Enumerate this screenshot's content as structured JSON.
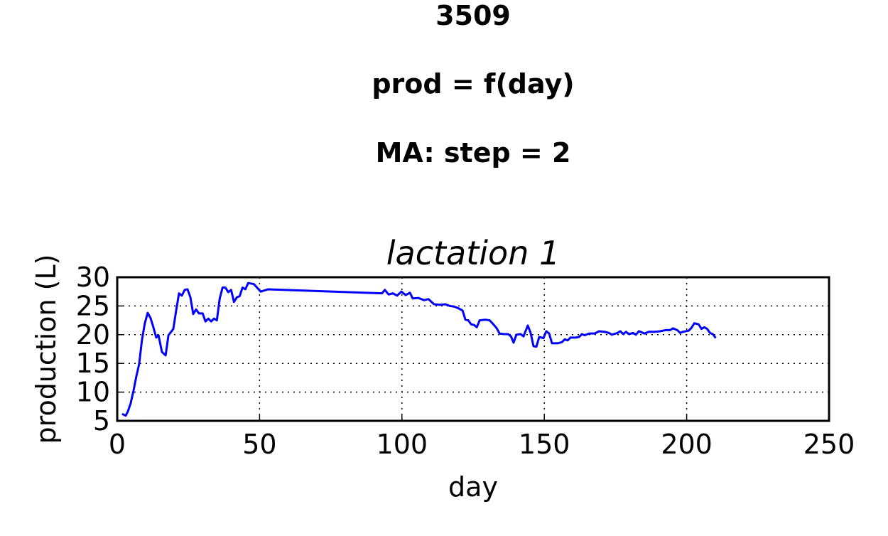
{
  "chart_data": {
    "type": "line",
    "suptitle": [
      "3509",
      "prod = f(day)",
      "MA: step = 2"
    ],
    "title": "lactation 1",
    "x_label": "day",
    "y_label": "production (L)",
    "xlim": [
      0,
      250
    ],
    "xticks": [
      0,
      50,
      100,
      150,
      200,
      250
    ],
    "ylim": [
      5,
      30
    ],
    "yticks": [
      5,
      10,
      15,
      20,
      25,
      30
    ],
    "grid": true,
    "series": [
      {
        "color": "#0000ff",
        "x": [
          1.7,
          3,
          3.7,
          4.7,
          5.7,
          6.7,
          7.7,
          8.7,
          9.7,
          10.7,
          11.7,
          12.7,
          13.7,
          14.5,
          15.7,
          17,
          18,
          19.7,
          20.7,
          21.7,
          22.7,
          23.7,
          24.7,
          25.7,
          26.7,
          27.7,
          28.7,
          30,
          31,
          32,
          33,
          34,
          35,
          36,
          37,
          38,
          39,
          40,
          41,
          42,
          43,
          44,
          45,
          46,
          48,
          50.4,
          53,
          93,
          94,
          95.3,
          96.8,
          98.3,
          99.8,
          101.3,
          102.8,
          103.8,
          105.8,
          107.8,
          109.3,
          111.3,
          113.3,
          115.3,
          116.8,
          118.3,
          119.8,
          121.3,
          122.3,
          123.3,
          124.3,
          125.3,
          126.3,
          127.3,
          129.3,
          130.8,
          132.3,
          133.3,
          134.3,
          135.8,
          137.3,
          138.3,
          139.2,
          140.2,
          141.7,
          142.7,
          144.2,
          145.2,
          146.2,
          147.2,
          148.2,
          149.7,
          150.7,
          151.7,
          152.7,
          154.7,
          156.2,
          157.2,
          158.2,
          159.2,
          161.2,
          162.2,
          163.2,
          164.2,
          165.7,
          167.7,
          169.2,
          171.2,
          172.7,
          173.7,
          175.7,
          176.7,
          177.7,
          178.7,
          179.7,
          181.2,
          182.2,
          183.2,
          185.2,
          186.7,
          188.7,
          190.7,
          192.7,
          194.2,
          195.2,
          196.7,
          197.7,
          198.7,
          199.7,
          200.7,
          201.7,
          202.7,
          204.2,
          205.2,
          206.2,
          207.2,
          208.2,
          209.2,
          210.2
        ],
        "values": [
          6.2,
          5.9,
          6.6,
          8.0,
          10.2,
          12.7,
          14.9,
          19.1,
          22.0,
          23.8,
          22.9,
          21.3,
          19.5,
          19.9,
          17.0,
          16.4,
          19.9,
          21.0,
          24.2,
          27.2,
          26.8,
          27.8,
          27.9,
          26.5,
          23.6,
          24.4,
          23.7,
          23.7,
          22.3,
          22.8,
          22.3,
          22.8,
          22.5,
          26.3,
          28.2,
          28.2,
          27.4,
          27.8,
          25.7,
          26.5,
          26.7,
          28.2,
          27.9,
          29.0,
          28.8,
          27.5,
          27.9,
          27.2,
          27.8,
          27.0,
          27.2,
          26.8,
          27.5,
          26.9,
          27.3,
          26.3,
          26.4,
          26.0,
          26.2,
          25.3,
          25.2,
          25.3,
          25.0,
          24.9,
          24.6,
          24.2,
          22.6,
          22.5,
          21.8,
          21.7,
          21.3,
          22.5,
          22.6,
          22.5,
          21.7,
          21.1,
          20.2,
          20.1,
          20.1,
          19.7,
          18.6,
          20.0,
          20.1,
          19.7,
          21.6,
          20.3,
          18.0,
          17.9,
          19.6,
          19.4,
          20.6,
          20.2,
          18.5,
          18.5,
          18.7,
          19.2,
          19.0,
          19.5,
          19.5,
          19.6,
          20.1,
          19.9,
          20.2,
          20.2,
          20.6,
          20.5,
          20.3,
          20.0,
          20.3,
          20.6,
          20.1,
          20.5,
          20.1,
          20.3,
          20.0,
          20.6,
          20.2,
          20.5,
          20.5,
          20.6,
          20.8,
          20.8,
          21.1,
          20.8,
          20.3,
          20.5,
          20.6,
          20.7,
          21.2,
          22.0,
          21.8,
          21.0,
          21.3,
          21.0,
          20.3,
          20.1,
          19.4
        ]
      }
    ]
  }
}
